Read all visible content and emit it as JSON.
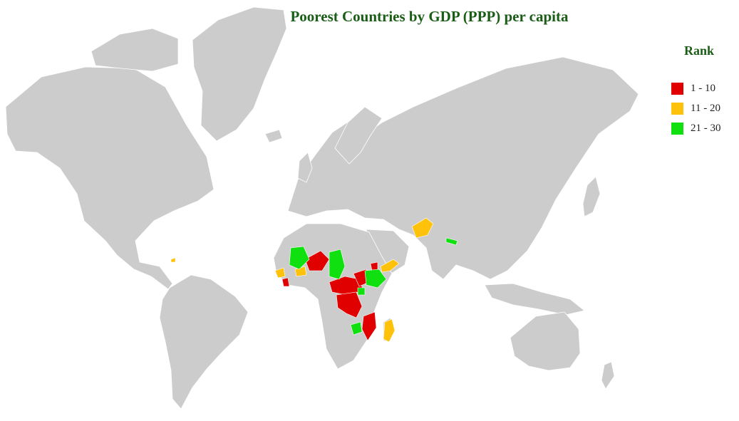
{
  "title": "Poorest Countries by GDP (PPP) per capita",
  "legend": {
    "title": "Rank",
    "items": [
      {
        "label": "1 - 10",
        "color": "#e10000"
      },
      {
        "label": "11 - 20",
        "color": "#ffc20a"
      },
      {
        "label": "21 - 30",
        "color": "#10e010"
      }
    ]
  },
  "colors": {
    "land": "#cccccc",
    "border": "#ffffff",
    "title": "#1a5d16"
  }
}
